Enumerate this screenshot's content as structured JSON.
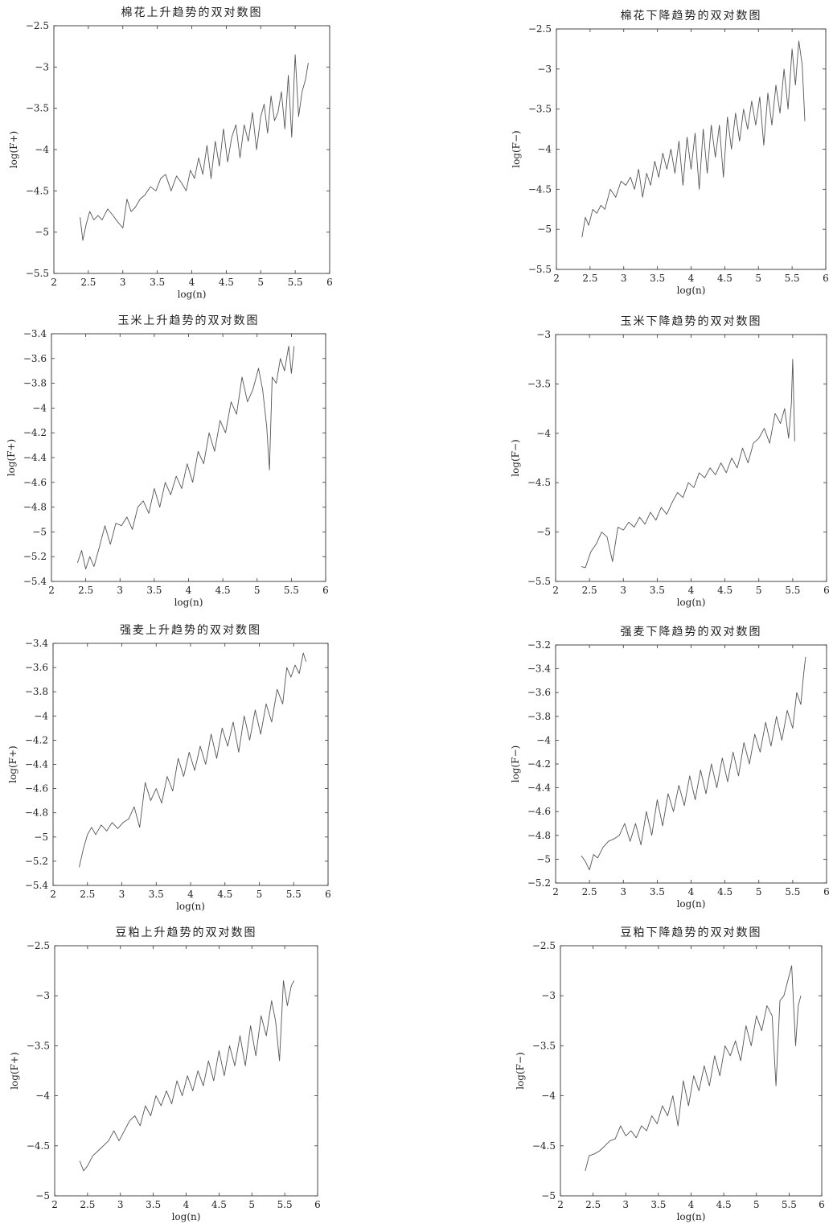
{
  "chart_data": [
    {
      "type": "line",
      "title": "棉花上升趋势的双对数图",
      "xlabel": "log(n)",
      "ylabel": "log(F+)",
      "xlim": [
        2,
        6
      ],
      "ylim": [
        -5.5,
        -2.5
      ],
      "xticks": [
        "2",
        "2.5",
        "3",
        "3.5",
        "4",
        "4.5",
        "5",
        "5.5",
        "6"
      ],
      "yticks": [
        "-5.5",
        "-5",
        "-4.5",
        "-4",
        "-3.5",
        "-3",
        "-2.5"
      ],
      "grid": false,
      "x": [
        2.38,
        2.42,
        2.47,
        2.52,
        2.58,
        2.64,
        2.7,
        2.78,
        2.86,
        2.93,
        3.0,
        3.06,
        3.12,
        3.18,
        3.25,
        3.32,
        3.4,
        3.48,
        3.55,
        3.62,
        3.7,
        3.78,
        3.85,
        3.92,
        3.98,
        4.04,
        4.1,
        4.16,
        4.22,
        4.28,
        4.34,
        4.4,
        4.46,
        4.52,
        4.58,
        4.64,
        4.7,
        4.76,
        4.82,
        4.88,
        4.94,
        5.0,
        5.05,
        5.1,
        5.15,
        5.2,
        5.25,
        5.3,
        5.35,
        5.4,
        5.45,
        5.5,
        5.55,
        5.6,
        5.65,
        5.69
      ],
      "y": [
        -4.82,
        -5.1,
        -4.9,
        -4.75,
        -4.85,
        -4.8,
        -4.85,
        -4.72,
        -4.8,
        -4.88,
        -4.95,
        -4.6,
        -4.75,
        -4.7,
        -4.6,
        -4.55,
        -4.45,
        -4.5,
        -4.35,
        -4.3,
        -4.5,
        -4.32,
        -4.4,
        -4.5,
        -4.25,
        -4.35,
        -4.1,
        -4.3,
        -3.95,
        -4.35,
        -3.9,
        -4.2,
        -3.75,
        -4.15,
        -3.85,
        -3.7,
        -4.1,
        -3.7,
        -3.9,
        -3.55,
        -4.0,
        -3.6,
        -3.45,
        -3.8,
        -3.35,
        -3.65,
        -3.55,
        -3.3,
        -3.75,
        -3.1,
        -3.85,
        -2.85,
        -3.6,
        -3.3,
        -3.15,
        -2.95
      ]
    },
    {
      "type": "line",
      "title": "棉花下降趋势的双对数图",
      "xlabel": "log(n)",
      "ylabel": "log(F−)",
      "xlim": [
        2,
        6
      ],
      "ylim": [
        -5.5,
        -2.5
      ],
      "xticks": [
        "2",
        "2.5",
        "3",
        "3.5",
        "4",
        "4.5",
        "5",
        "5.5",
        "6"
      ],
      "yticks": [
        "-5.5",
        "-5",
        "-4.5",
        "-4",
        "-3.5",
        "-3",
        "-2.5"
      ],
      "grid": false,
      "x": [
        2.38,
        2.43,
        2.48,
        2.54,
        2.6,
        2.66,
        2.72,
        2.8,
        2.88,
        2.96,
        3.03,
        3.1,
        3.16,
        3.22,
        3.28,
        3.34,
        3.4,
        3.46,
        3.52,
        3.58,
        3.64,
        3.7,
        3.76,
        3.82,
        3.88,
        3.94,
        4.0,
        4.06,
        4.12,
        4.18,
        4.24,
        4.3,
        4.36,
        4.42,
        4.48,
        4.54,
        4.6,
        4.66,
        4.72,
        4.78,
        4.84,
        4.9,
        4.96,
        5.02,
        5.08,
        5.14,
        5.2,
        5.26,
        5.32,
        5.38,
        5.44,
        5.5,
        5.55,
        5.6,
        5.65,
        5.69
      ],
      "y": [
        -5.1,
        -4.85,
        -4.95,
        -4.75,
        -4.8,
        -4.7,
        -4.75,
        -4.5,
        -4.6,
        -4.4,
        -4.45,
        -4.35,
        -4.5,
        -4.25,
        -4.6,
        -4.3,
        -4.45,
        -4.15,
        -4.35,
        -4.05,
        -4.25,
        -4.0,
        -4.3,
        -3.9,
        -4.45,
        -3.85,
        -4.25,
        -3.8,
        -4.5,
        -3.75,
        -4.3,
        -3.7,
        -4.1,
        -3.7,
        -4.35,
        -3.6,
        -4.0,
        -3.55,
        -3.9,
        -3.5,
        -3.75,
        -3.4,
        -3.7,
        -3.35,
        -3.95,
        -3.3,
        -3.7,
        -3.2,
        -3.55,
        -3.0,
        -3.5,
        -2.75,
        -3.2,
        -2.65,
        -2.95,
        -3.65
      ]
    },
    {
      "type": "line",
      "title": "玉米上升趋势的双对数图",
      "xlabel": "log(n)",
      "ylabel": "log(F+)",
      "xlim": [
        2,
        6
      ],
      "ylim": [
        -5.4,
        -3.4
      ],
      "xticks": [
        "2",
        "2.5",
        "3",
        "3.5",
        "4",
        "4.5",
        "5",
        "5.5",
        "6"
      ],
      "yticks": [
        "-5.4",
        "-5.2",
        "-5",
        "-4.8",
        "-4.6",
        "-4.4",
        "-4.2",
        "-4",
        "-3.8",
        "-3.6",
        "-3.4"
      ],
      "grid": false,
      "x": [
        2.38,
        2.44,
        2.5,
        2.56,
        2.62,
        2.7,
        2.78,
        2.86,
        2.94,
        3.02,
        3.1,
        3.18,
        3.26,
        3.34,
        3.42,
        3.5,
        3.58,
        3.66,
        3.74,
        3.82,
        3.9,
        3.98,
        4.06,
        4.14,
        4.22,
        4.3,
        4.38,
        4.46,
        4.54,
        4.62,
        4.7,
        4.78,
        4.86,
        4.94,
        5.02,
        5.08,
        5.14,
        5.18,
        5.22,
        5.28,
        5.34,
        5.4,
        5.46,
        5.5,
        5.54
      ],
      "y": [
        -5.25,
        -5.15,
        -5.3,
        -5.2,
        -5.28,
        -5.12,
        -4.95,
        -5.1,
        -4.93,
        -4.95,
        -4.88,
        -4.98,
        -4.8,
        -4.75,
        -4.85,
        -4.65,
        -4.8,
        -4.6,
        -4.7,
        -4.55,
        -4.65,
        -4.45,
        -4.6,
        -4.35,
        -4.45,
        -4.2,
        -4.35,
        -4.1,
        -4.2,
        -3.95,
        -4.05,
        -3.75,
        -3.95,
        -3.85,
        -3.68,
        -3.85,
        -4.15,
        -4.5,
        -3.75,
        -3.8,
        -3.6,
        -3.7,
        -3.5,
        -3.72,
        -3.5
      ]
    },
    {
      "type": "line",
      "title": "玉米下降趋势的双对数图",
      "xlabel": "log(n)",
      "ylabel": "log(F−)",
      "xlim": [
        2,
        6
      ],
      "ylim": [
        -5.5,
        -3
      ],
      "xticks": [
        "2",
        "2.5",
        "3",
        "3.5",
        "4",
        "4.5",
        "5",
        "5.5",
        "6"
      ],
      "yticks": [
        "-5.5",
        "-5",
        "-4.5",
        "-4",
        "-3.5",
        "-3"
      ],
      "grid": false,
      "x": [
        2.38,
        2.44,
        2.52,
        2.6,
        2.68,
        2.76,
        2.84,
        2.92,
        3.0,
        3.08,
        3.16,
        3.24,
        3.32,
        3.4,
        3.48,
        3.56,
        3.64,
        3.72,
        3.8,
        3.88,
        3.96,
        4.04,
        4.12,
        4.2,
        4.28,
        4.36,
        4.44,
        4.52,
        4.6,
        4.68,
        4.76,
        4.84,
        4.92,
        5.0,
        5.08,
        5.16,
        5.24,
        5.32,
        5.38,
        5.44,
        5.48,
        5.5,
        5.53
      ],
      "y": [
        -5.35,
        -5.36,
        -5.2,
        -5.12,
        -5.0,
        -5.05,
        -5.3,
        -4.95,
        -4.98,
        -4.9,
        -4.95,
        -4.85,
        -4.92,
        -4.8,
        -4.88,
        -4.75,
        -4.82,
        -4.7,
        -4.6,
        -4.65,
        -4.5,
        -4.55,
        -4.4,
        -4.45,
        -4.35,
        -4.42,
        -4.3,
        -4.4,
        -4.25,
        -4.35,
        -4.15,
        -4.3,
        -4.1,
        -4.05,
        -3.95,
        -4.1,
        -3.8,
        -3.9,
        -3.75,
        -4.05,
        -3.7,
        -3.25,
        -4.08
      ]
    },
    {
      "type": "line",
      "title": "强麦上升趋势的双对数图",
      "xlabel": "log(n)",
      "ylabel": "log(F+)",
      "xlim": [
        2,
        6
      ],
      "ylim": [
        -5.4,
        -3.4
      ],
      "xticks": [
        "2",
        "2.5",
        "3",
        "3.5",
        "4",
        "4.5",
        "5",
        "5.5",
        "6"
      ],
      "yticks": [
        "-5.4",
        "-5.2",
        "-5",
        "-4.8",
        "-4.6",
        "-4.4",
        "-4.2",
        "-4",
        "-3.8",
        "-3.6",
        "-3.4"
      ],
      "grid": false,
      "x": [
        2.38,
        2.44,
        2.5,
        2.56,
        2.62,
        2.7,
        2.78,
        2.86,
        2.94,
        3.02,
        3.1,
        3.18,
        3.26,
        3.34,
        3.42,
        3.5,
        3.58,
        3.66,
        3.74,
        3.82,
        3.9,
        3.98,
        4.06,
        4.14,
        4.22,
        4.3,
        4.38,
        4.46,
        4.54,
        4.62,
        4.7,
        4.78,
        4.86,
        4.94,
        5.02,
        5.1,
        5.18,
        5.26,
        5.34,
        5.4,
        5.46,
        5.52,
        5.58,
        5.64,
        5.68
      ],
      "y": [
        -5.25,
        -5.1,
        -4.98,
        -4.92,
        -4.98,
        -4.9,
        -4.95,
        -4.88,
        -4.93,
        -4.88,
        -4.85,
        -4.75,
        -4.92,
        -4.55,
        -4.7,
        -4.6,
        -4.72,
        -4.5,
        -4.62,
        -4.35,
        -4.5,
        -4.3,
        -4.45,
        -4.25,
        -4.4,
        -4.15,
        -4.35,
        -4.1,
        -4.25,
        -4.05,
        -4.3,
        -4.0,
        -4.2,
        -3.95,
        -4.15,
        -3.9,
        -4.05,
        -3.78,
        -3.9,
        -3.6,
        -3.68,
        -3.58,
        -3.65,
        -3.48,
        -3.55
      ]
    },
    {
      "type": "line",
      "title": "强麦下降趋势的双对数图",
      "xlabel": "log(n)",
      "ylabel": "log(F−)",
      "xlim": [
        2,
        6
      ],
      "ylim": [
        -5.2,
        -3.2
      ],
      "xticks": [
        "2",
        "2.5",
        "3",
        "3.5",
        "4",
        "4.5",
        "5",
        "5.5",
        "6"
      ],
      "yticks": [
        "-5.2",
        "-5",
        "-4.8",
        "-4.6",
        "-4.4",
        "-4.2",
        "-4",
        "-3.8",
        "-3.6",
        "-3.4",
        "-3.2"
      ],
      "grid": false,
      "x": [
        2.38,
        2.44,
        2.5,
        2.56,
        2.62,
        2.7,
        2.78,
        2.86,
        2.94,
        3.02,
        3.1,
        3.18,
        3.26,
        3.34,
        3.42,
        3.5,
        3.58,
        3.66,
        3.74,
        3.82,
        3.9,
        3.98,
        4.06,
        4.14,
        4.22,
        4.3,
        4.38,
        4.46,
        4.54,
        4.62,
        4.7,
        4.78,
        4.86,
        4.94,
        5.02,
        5.1,
        5.18,
        5.26,
        5.34,
        5.42,
        5.5,
        5.56,
        5.62,
        5.66,
        5.69
      ],
      "y": [
        -4.97,
        -5.02,
        -5.09,
        -4.96,
        -4.99,
        -4.9,
        -4.85,
        -4.83,
        -4.8,
        -4.7,
        -4.85,
        -4.7,
        -4.88,
        -4.6,
        -4.8,
        -4.5,
        -4.72,
        -4.45,
        -4.6,
        -4.38,
        -4.55,
        -4.3,
        -4.5,
        -4.25,
        -4.45,
        -4.2,
        -4.4,
        -4.15,
        -4.35,
        -4.1,
        -4.3,
        -4.02,
        -4.2,
        -3.95,
        -4.1,
        -3.85,
        -4.05,
        -3.8,
        -4.0,
        -3.75,
        -3.9,
        -3.6,
        -3.7,
        -3.45,
        -3.3
      ]
    },
    {
      "type": "line",
      "title": "豆粕上升趋势的双对数图",
      "xlabel": "log(n)",
      "ylabel": "log(F+)",
      "xlim": [
        2,
        6
      ],
      "ylim": [
        -5,
        -2.5
      ],
      "xticks": [
        "2",
        "2.5",
        "3",
        "3.5",
        "4",
        "4.5",
        "5",
        "5.5",
        "6"
      ],
      "yticks": [
        "-5",
        "-4.5",
        "-4",
        "-3.5",
        "-3",
        "-2.5"
      ],
      "grid": false,
      "x": [
        2.38,
        2.44,
        2.5,
        2.58,
        2.66,
        2.74,
        2.82,
        2.9,
        2.98,
        3.06,
        3.14,
        3.22,
        3.3,
        3.38,
        3.46,
        3.54,
        3.62,
        3.7,
        3.78,
        3.86,
        3.94,
        4.02,
        4.1,
        4.18,
        4.26,
        4.34,
        4.42,
        4.5,
        4.58,
        4.66,
        4.74,
        4.82,
        4.9,
        4.98,
        5.06,
        5.14,
        5.22,
        5.3,
        5.36,
        5.42,
        5.48,
        5.54,
        5.6,
        5.64
      ],
      "y": [
        -4.65,
        -4.75,
        -4.7,
        -4.6,
        -4.55,
        -4.5,
        -4.45,
        -4.35,
        -4.45,
        -4.35,
        -4.25,
        -4.2,
        -4.3,
        -4.1,
        -4.2,
        -4.0,
        -4.1,
        -3.95,
        -4.08,
        -3.85,
        -4.0,
        -3.8,
        -3.95,
        -3.75,
        -3.9,
        -3.65,
        -3.85,
        -3.55,
        -3.8,
        -3.5,
        -3.7,
        -3.4,
        -3.7,
        -3.3,
        -3.6,
        -3.2,
        -3.4,
        -3.05,
        -3.25,
        -3.65,
        -2.85,
        -3.1,
        -2.9,
        -2.85
      ]
    },
    {
      "type": "line",
      "title": "豆粕下降趋势的双对数图",
      "xlabel": "log(n)",
      "ylabel": "log(F−)",
      "xlim": [
        2,
        6
      ],
      "ylim": [
        -5,
        -2.5
      ],
      "xticks": [
        "2",
        "2.5",
        "3",
        "3.5",
        "4",
        "4.5",
        "5",
        "5.5",
        "6"
      ],
      "yticks": [
        "-5",
        "-4.5",
        "-4",
        "-3.5",
        "-3",
        "-2.5"
      ],
      "grid": false,
      "x": [
        2.38,
        2.44,
        2.52,
        2.6,
        2.68,
        2.76,
        2.84,
        2.92,
        3.0,
        3.08,
        3.16,
        3.24,
        3.32,
        3.4,
        3.48,
        3.56,
        3.64,
        3.72,
        3.8,
        3.88,
        3.96,
        4.04,
        4.12,
        4.2,
        4.28,
        4.36,
        4.44,
        4.52,
        4.6,
        4.68,
        4.76,
        4.84,
        4.92,
        5.0,
        5.08,
        5.16,
        5.24,
        5.3,
        5.36,
        5.42,
        5.48,
        5.54,
        5.6,
        5.64,
        5.68
      ],
      "y": [
        -4.75,
        -4.6,
        -4.58,
        -4.55,
        -4.5,
        -4.45,
        -4.43,
        -4.3,
        -4.4,
        -4.35,
        -4.42,
        -4.3,
        -4.35,
        -4.2,
        -4.28,
        -4.1,
        -4.2,
        -4.0,
        -4.3,
        -3.85,
        -4.1,
        -3.8,
        -3.95,
        -3.7,
        -3.9,
        -3.6,
        -3.8,
        -3.5,
        -3.6,
        -3.45,
        -3.65,
        -3.3,
        -3.5,
        -3.2,
        -3.35,
        -3.1,
        -3.2,
        -3.9,
        -3.05,
        -3.0,
        -2.85,
        -2.7,
        -3.5,
        -3.1,
        -3.0
      ]
    }
  ]
}
